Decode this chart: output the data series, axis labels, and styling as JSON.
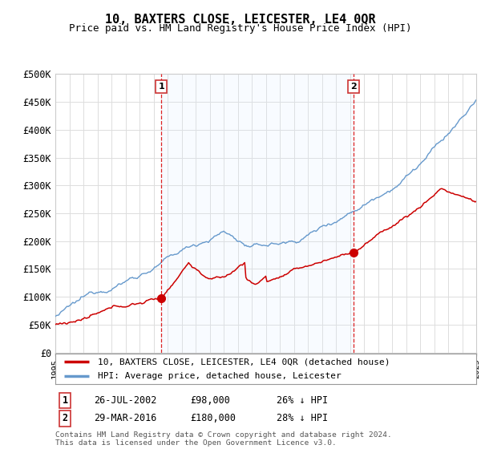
{
  "title": "10, BAXTERS CLOSE, LEICESTER, LE4 0QR",
  "subtitle": "Price paid vs. HM Land Registry's House Price Index (HPI)",
  "ylim": [
    0,
    500000
  ],
  "yticks": [
    0,
    50000,
    100000,
    150000,
    200000,
    250000,
    300000,
    350000,
    400000,
    450000,
    500000
  ],
  "ytick_labels": [
    "£0",
    "£50K",
    "£100K",
    "£150K",
    "£200K",
    "£250K",
    "£300K",
    "£350K",
    "£400K",
    "£450K",
    "£500K"
  ],
  "x_start_year": 1995,
  "x_end_year": 2025,
  "sale1_date": 2002.56,
  "sale1_price": 98000,
  "sale1_label": "1",
  "sale1_text": "26-JUL-2002",
  "sale1_amount": "£98,000",
  "sale1_hpi": "26% ↓ HPI",
  "sale2_date": 2016.24,
  "sale2_price": 180000,
  "sale2_label": "2",
  "sale2_text": "29-MAR-2016",
  "sale2_amount": "£180,000",
  "sale2_hpi": "28% ↓ HPI",
  "line_color_sale": "#cc0000",
  "line_color_hpi": "#6699cc",
  "fill_color": "#ddeeff",
  "marker_color": "#cc0000",
  "vline_color": "#dd2222",
  "grid_color": "#dddddd",
  "background_color": "#ffffff",
  "legend_label_sale": "10, BAXTERS CLOSE, LEICESTER, LE4 0QR (detached house)",
  "legend_label_hpi": "HPI: Average price, detached house, Leicester",
  "footer_text": "Contains HM Land Registry data © Crown copyright and database right 2024.\nThis data is licensed under the Open Government Licence v3.0.",
  "title_fontsize": 11,
  "subtitle_fontsize": 9
}
